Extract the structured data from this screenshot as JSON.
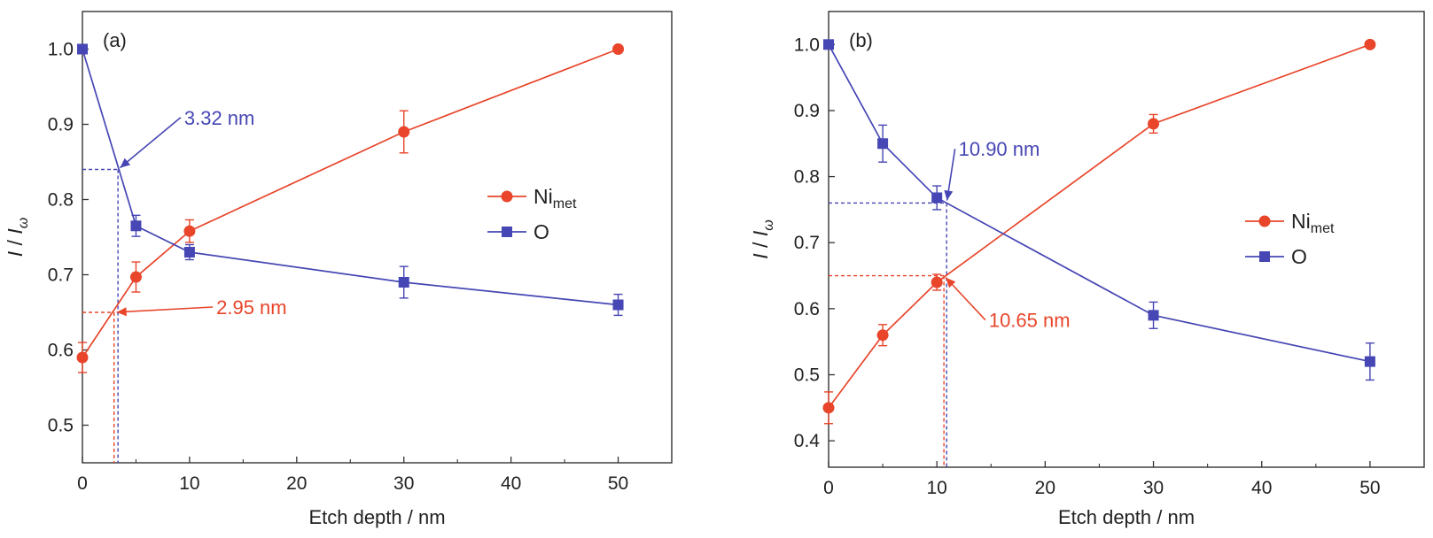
{
  "colors": {
    "ni": "#e8452a",
    "o": "#4646b4",
    "axis": "#333333",
    "text": "#222222"
  },
  "chart_data": [
    {
      "type": "line",
      "panel_label": "(a)",
      "xlabel": "Etch depth / nm",
      "ylabel": {
        "main": "I",
        "sep": " / ",
        "sub_base": "I",
        "sub": "ω"
      },
      "xlim": [
        0,
        55
      ],
      "ylim": [
        0.45,
        1.05
      ],
      "xticks": [
        0,
        10,
        20,
        30,
        40,
        50
      ],
      "yticks": [
        0.5,
        0.6,
        0.7,
        0.8,
        0.9,
        1.0
      ],
      "x": [
        0,
        5,
        10,
        30,
        50
      ],
      "series": [
        {
          "name": "Ni",
          "name_sub": "met",
          "marker": "circle",
          "color_key": "ni",
          "values": [
            0.59,
            0.697,
            0.758,
            0.89,
            1.0
          ],
          "errors": [
            0.02,
            0.02,
            0.015,
            0.028,
            0
          ]
        },
        {
          "name": "O",
          "name_sub": "",
          "marker": "square",
          "color_key": "o",
          "values": [
            1.0,
            0.765,
            0.73,
            0.69,
            0.66
          ],
          "errors": [
            0,
            0.014,
            0.01,
            0.021,
            0.014
          ]
        }
      ],
      "annotations": [
        {
          "text": "3.32 nm",
          "color_key": "o",
          "x": 3.32,
          "y": 0.84,
          "label_x": 9.5,
          "label_y": 0.902
        },
        {
          "text": "2.95 nm",
          "color_key": "ni",
          "x": 2.95,
          "y": 0.65,
          "label_x": 12.5,
          "label_y": 0.65
        }
      ],
      "legend_position": "right"
    },
    {
      "type": "line",
      "panel_label": "(b)",
      "xlabel": "Etch depth / nm",
      "ylabel": {
        "main": "I",
        "sep": " / ",
        "sub_base": "I",
        "sub": "ω"
      },
      "xlim": [
        0,
        55
      ],
      "ylim": [
        0.36,
        1.05
      ],
      "xticks": [
        0,
        10,
        20,
        30,
        40,
        50
      ],
      "yticks": [
        0.4,
        0.5,
        0.6,
        0.7,
        0.8,
        0.9,
        1.0
      ],
      "x": [
        0,
        5,
        10,
        30,
        50
      ],
      "series": [
        {
          "name": "Ni",
          "name_sub": "met",
          "marker": "circle",
          "color_key": "ni",
          "values": [
            0.45,
            0.56,
            0.64,
            0.88,
            1.0
          ],
          "errors": [
            0.024,
            0.016,
            0.012,
            0.014,
            0
          ]
        },
        {
          "name": "O",
          "name_sub": "",
          "marker": "square",
          "color_key": "o",
          "values": [
            1.0,
            0.85,
            0.768,
            0.59,
            0.52
          ],
          "errors": [
            0,
            0.028,
            0.018,
            0.02,
            0.028
          ]
        }
      ],
      "annotations": [
        {
          "text": "10.90 nm",
          "color_key": "o",
          "x": 10.9,
          "y": 0.76,
          "label_x": 12,
          "label_y": 0.834
        },
        {
          "text": "10.65 nm",
          "color_key": "ni",
          "x": 10.65,
          "y": 0.65,
          "label_x": 14.8,
          "label_y": 0.575
        }
      ],
      "legend_position": "right"
    }
  ]
}
